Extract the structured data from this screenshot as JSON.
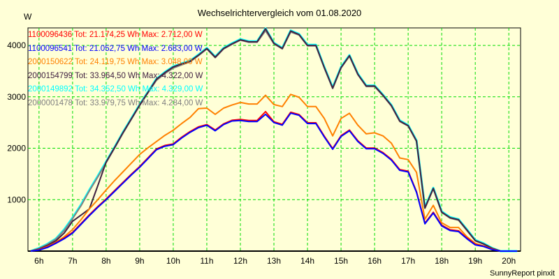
{
  "chart_data": {
    "type": "line",
    "title": "Wechselrichtervergleich vom 01.08.2020",
    "ylabel": "W",
    "xlabel": "",
    "xlim": [
      5.67,
      20.35
    ],
    "ylim": [
      0,
      4340
    ],
    "grid": true,
    "legend_position": "top-left",
    "x_ticks": [
      6,
      7,
      8,
      9,
      10,
      11,
      12,
      13,
      14,
      15,
      16,
      17,
      18,
      19,
      20
    ],
    "x_tick_labels": [
      "6h",
      "7h",
      "8h",
      "9h",
      "10h",
      "11h",
      "12h",
      "13h",
      "14h",
      "15h",
      "16h",
      "17h",
      "18h",
      "19h",
      "20h"
    ],
    "y_ticks": [
      1000,
      2000,
      3000,
      4000
    ],
    "y_tick_labels": [
      "1000",
      "2000",
      "3000",
      "4000"
    ],
    "x": [
      5.75,
      6,
      6.25,
      6.5,
      6.75,
      7,
      7.25,
      7.5,
      7.75,
      8,
      8.25,
      8.5,
      8.75,
      9,
      9.25,
      9.5,
      9.75,
      10,
      10.25,
      10.5,
      10.75,
      11,
      11.25,
      11.5,
      11.75,
      12,
      12.25,
      12.5,
      12.75,
      13,
      13.25,
      13.5,
      13.75,
      14,
      14.25,
      14.5,
      14.75,
      15,
      15.25,
      15.5,
      15.75,
      16,
      16.25,
      16.5,
      16.75,
      17,
      17.25,
      17.5,
      17.75,
      18,
      18.25,
      18.5,
      18.75,
      19,
      19.25,
      19.5,
      19.75,
      20,
      20.25
    ],
    "series": [
      {
        "name": "1100096436",
        "legend": "1100096436 Tot: 21.174,25 Wh Max: 2.712,00 W",
        "color": "#ff0000",
        "values": [
          0,
          25,
          80,
          160,
          255,
          365,
          535,
          705,
          865,
          1015,
          1175,
          1335,
          1495,
          1645,
          1815,
          1985,
          2055,
          2085,
          2215,
          2325,
          2415,
          2460,
          2355,
          2475,
          2545,
          2560,
          2540,
          2540,
          2712,
          2515,
          2465,
          2700,
          2655,
          2495,
          2495,
          2235,
          1995,
          2245,
          2355,
          2145,
          2005,
          2005,
          1915,
          1785,
          1585,
          1555,
          1155,
          545,
          755,
          505,
          415,
          395,
          255,
          130,
          95,
          35,
          0,
          0,
          0
        ]
      },
      {
        "name": "1100096541",
        "legend": "1100096541 Tot: 21.052,75 Wh Max: 2.683,00 W",
        "color": "#0000ff",
        "values": [
          0,
          20,
          70,
          150,
          240,
          350,
          520,
          690,
          850,
          1000,
          1160,
          1320,
          1480,
          1630,
          1800,
          1970,
          2040,
          2070,
          2200,
          2310,
          2400,
          2446,
          2340,
          2460,
          2530,
          2540,
          2520,
          2520,
          2660,
          2500,
          2450,
          2683,
          2640,
          2480,
          2480,
          2220,
          1980,
          2230,
          2340,
          2130,
          1990,
          1990,
          1900,
          1770,
          1570,
          1540,
          1140,
          530,
          740,
          490,
          400,
          380,
          240,
          120,
          90,
          30,
          0,
          0,
          0
        ]
      },
      {
        "name": "2000150622",
        "legend": "2000150622 Tot: 24.119,75 Wh Max: 3.048,00 W",
        "color": "#ff8000",
        "values": [
          0,
          30,
          90,
          170,
          280,
          420,
          610,
          820,
          1000,
          1190,
          1370,
          1540,
          1710,
          1880,
          2010,
          2130,
          2250,
          2350,
          2480,
          2600,
          2770,
          2780,
          2660,
          2780,
          2840,
          2890,
          2860,
          2860,
          3030,
          2850,
          2810,
          3048,
          2990,
          2810,
          2810,
          2580,
          2240,
          2580,
          2680,
          2450,
          2280,
          2300,
          2240,
          2100,
          1810,
          1780,
          1530,
          620,
          890,
          550,
          460,
          460,
          280,
          150,
          100,
          40,
          0,
          0,
          0
        ]
      },
      {
        "name": "2000154799",
        "legend": "2000154799 Tot: 33.964,50 Wh Max: 4.322,00 W",
        "color": "#402040",
        "values": [
          0,
          40,
          110,
          200,
          350,
          580,
          700,
          820,
          1270,
          1730,
          2010,
          2300,
          2570,
          2840,
          3090,
          3340,
          3470,
          3580,
          3640,
          3690,
          3810,
          3940,
          3770,
          3940,
          4030,
          4110,
          4070,
          4070,
          4322,
          4040,
          3940,
          4280,
          4210,
          4000,
          4000,
          3570,
          3170,
          3570,
          3800,
          3440,
          3210,
          3210,
          3030,
          2830,
          2530,
          2440,
          2140,
          840,
          1220,
          760,
          650,
          610,
          410,
          205,
          140,
          55,
          0,
          0,
          0
        ]
      },
      {
        "name": "2000149892",
        "legend": "2000149892 Tot: 34.352,50 Wh Max: 4.329,00 W",
        "color": "#00ffff",
        "values": [
          0,
          60,
          140,
          240,
          420,
          650,
          900,
          1190,
          1460,
          1740,
          2020,
          2310,
          2580,
          2850,
          3100,
          3350,
          3480,
          3590,
          3650,
          3700,
          3820,
          3950,
          3780,
          3950,
          4040,
          4120,
          4080,
          4080,
          4329,
          4050,
          3950,
          4290,
          4220,
          4010,
          4010,
          3580,
          3180,
          3580,
          3810,
          3450,
          3220,
          3220,
          3040,
          2840,
          2540,
          2450,
          2150,
          850,
          1230,
          770,
          660,
          620,
          420,
          215,
          150,
          60,
          0,
          0,
          0
        ]
      },
      {
        "name": "2000001478",
        "legend": "2000001478 Tot: 33.979,75 Wh Max: 4.284,00 W",
        "color": "#808080",
        "values": [
          0,
          50,
          130,
          230,
          400,
          630,
          880,
          1170,
          1440,
          1720,
          2000,
          2290,
          2560,
          2830,
          3080,
          3320,
          3450,
          3560,
          3620,
          3680,
          3800,
          3930,
          3760,
          3930,
          4020,
          4100,
          4060,
          4060,
          4284,
          4030,
          3930,
          4260,
          4200,
          3990,
          3990,
          3560,
          3160,
          3560,
          3790,
          3430,
          3200,
          3200,
          3020,
          2820,
          2520,
          2430,
          2130,
          830,
          1210,
          750,
          640,
          600,
          400,
          200,
          135,
          50,
          0,
          0,
          0
        ]
      }
    ]
  },
  "footer": {
    "credit": "SunnyReport pinxit"
  }
}
